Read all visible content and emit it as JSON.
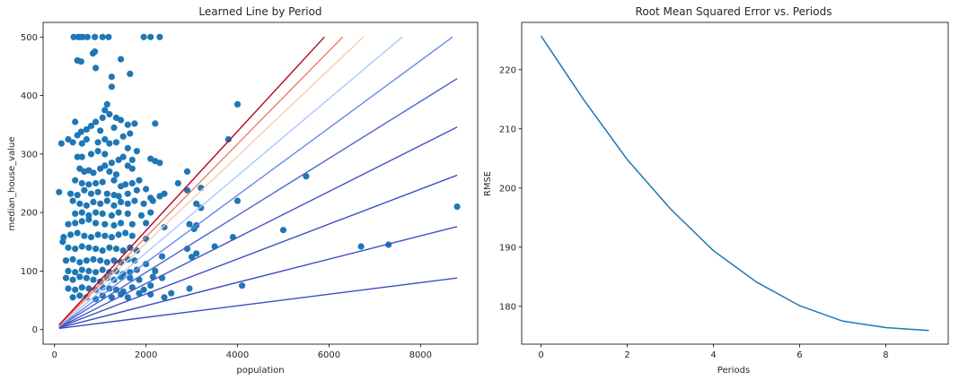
{
  "chart_data": [
    {
      "type": "scatter",
      "title": "Learned Line by Period",
      "xlabel": "population",
      "ylabel": "median_house_value",
      "xlim": [
        -250,
        9250
      ],
      "ylim": [
        -25,
        525
      ],
      "xticks": [
        0,
        2000,
        4000,
        6000,
        8000
      ],
      "yticks": [
        0,
        100,
        200,
        300,
        400,
        500
      ],
      "grid": false,
      "scatter_color": "#1f77b4",
      "points": [
        [
          420,
          500
        ],
        [
          520,
          500
        ],
        [
          560,
          500
        ],
        [
          620,
          500
        ],
        [
          720,
          500
        ],
        [
          880,
          500
        ],
        [
          1050,
          500
        ],
        [
          1180,
          500
        ],
        [
          1950,
          500
        ],
        [
          2100,
          500
        ],
        [
          2300,
          500
        ],
        [
          500,
          460
        ],
        [
          580,
          458
        ],
        [
          840,
          472
        ],
        [
          880,
          475
        ],
        [
          1450,
          462
        ],
        [
          1650,
          437
        ],
        [
          1250,
          432
        ],
        [
          1250,
          415
        ],
        [
          900,
          447
        ],
        [
          1150,
          385
        ],
        [
          1100,
          375
        ],
        [
          1200,
          368
        ],
        [
          1050,
          362
        ],
        [
          1350,
          362
        ],
        [
          1450,
          358
        ],
        [
          1600,
          350
        ],
        [
          1750,
          352
        ],
        [
          2200,
          352
        ],
        [
          4000,
          385
        ],
        [
          450,
          355
        ],
        [
          500,
          332
        ],
        [
          580,
          338
        ],
        [
          700,
          342
        ],
        [
          800,
          348
        ],
        [
          900,
          355
        ],
        [
          1000,
          340
        ],
        [
          1300,
          345
        ],
        [
          1500,
          330
        ],
        [
          1650,
          335
        ],
        [
          3800,
          325
        ],
        [
          300,
          325
        ],
        [
          400,
          320
        ],
        [
          600,
          318
        ],
        [
          700,
          325
        ],
        [
          950,
          320
        ],
        [
          1100,
          325
        ],
        [
          1200,
          318
        ],
        [
          1350,
          320
        ],
        [
          1600,
          310
        ],
        [
          1800,
          305
        ],
        [
          150,
          318
        ],
        [
          500,
          295
        ],
        [
          600,
          295
        ],
        [
          800,
          300
        ],
        [
          950,
          305
        ],
        [
          1100,
          300
        ],
        [
          1250,
          285
        ],
        [
          1400,
          290
        ],
        [
          1500,
          295
        ],
        [
          1700,
          290
        ],
        [
          2100,
          292
        ],
        [
          2200,
          288
        ],
        [
          2300,
          285
        ],
        [
          550,
          275
        ],
        [
          650,
          270
        ],
        [
          750,
          272
        ],
        [
          850,
          268
        ],
        [
          1000,
          275
        ],
        [
          1100,
          280
        ],
        [
          1200,
          270
        ],
        [
          1350,
          265
        ],
        [
          1600,
          280
        ],
        [
          1700,
          275
        ],
        [
          2900,
          270
        ],
        [
          450,
          255
        ],
        [
          600,
          250
        ],
        [
          750,
          248
        ],
        [
          900,
          250
        ],
        [
          1050,
          252
        ],
        [
          1300,
          255
        ],
        [
          1450,
          245
        ],
        [
          1550,
          248
        ],
        [
          1700,
          250
        ],
        [
          1850,
          255
        ],
        [
          2000,
          240
        ],
        [
          2700,
          250
        ],
        [
          350,
          232
        ],
        [
          500,
          230
        ],
        [
          650,
          238
        ],
        [
          800,
          232
        ],
        [
          950,
          235
        ],
        [
          1150,
          232
        ],
        [
          1300,
          230
        ],
        [
          1400,
          228
        ],
        [
          1600,
          232
        ],
        [
          1800,
          238
        ],
        [
          2100,
          225
        ],
        [
          2300,
          228
        ],
        [
          2400,
          232
        ],
        [
          2900,
          238
        ],
        [
          3200,
          242
        ],
        [
          100,
          235
        ],
        [
          400,
          220
        ],
        [
          550,
          215
        ],
        [
          700,
          212
        ],
        [
          850,
          218
        ],
        [
          1000,
          215
        ],
        [
          1150,
          220
        ],
        [
          1300,
          212
        ],
        [
          1450,
          218
        ],
        [
          1600,
          215
        ],
        [
          1750,
          220
        ],
        [
          1950,
          215
        ],
        [
          2150,
          220
        ],
        [
          3100,
          215
        ],
        [
          3200,
          208
        ],
        [
          4000,
          220
        ],
        [
          5500,
          262
        ],
        [
          8800,
          210
        ],
        [
          450,
          198
        ],
        [
          600,
          200
        ],
        [
          750,
          195
        ],
        [
          900,
          200
        ],
        [
          1050,
          198
        ],
        [
          1250,
          195
        ],
        [
          1400,
          200
        ],
        [
          1600,
          198
        ],
        [
          1900,
          195
        ],
        [
          2100,
          200
        ],
        [
          300,
          180
        ],
        [
          450,
          182
        ],
        [
          600,
          185
        ],
        [
          750,
          188
        ],
        [
          900,
          182
        ],
        [
          1100,
          180
        ],
        [
          1300,
          178
        ],
        [
          1450,
          182
        ],
        [
          1700,
          180
        ],
        [
          2000,
          182
        ],
        [
          2400,
          175
        ],
        [
          2950,
          180
        ],
        [
          3100,
          178
        ],
        [
          200,
          158
        ],
        [
          350,
          162
        ],
        [
          500,
          165
        ],
        [
          650,
          160
        ],
        [
          800,
          158
        ],
        [
          950,
          162
        ],
        [
          1100,
          160
        ],
        [
          1250,
          158
        ],
        [
          1400,
          162
        ],
        [
          1550,
          165
        ],
        [
          1700,
          160
        ],
        [
          2000,
          155
        ],
        [
          3050,
          172
        ],
        [
          3500,
          142
        ],
        [
          3900,
          158
        ],
        [
          5000,
          170
        ],
        [
          6700,
          142
        ],
        [
          7300,
          145
        ],
        [
          180,
          150
        ],
        [
          300,
          140
        ],
        [
          450,
          138
        ],
        [
          600,
          142
        ],
        [
          750,
          140
        ],
        [
          900,
          138
        ],
        [
          1050,
          135
        ],
        [
          1200,
          140
        ],
        [
          1350,
          138
        ],
        [
          1500,
          135
        ],
        [
          1650,
          140
        ],
        [
          1800,
          135
        ],
        [
          2350,
          125
        ],
        [
          2900,
          138
        ],
        [
          3100,
          130
        ],
        [
          3000,
          124
        ],
        [
          250,
          118
        ],
        [
          400,
          120
        ],
        [
          550,
          115
        ],
        [
          700,
          118
        ],
        [
          850,
          120
        ],
        [
          1000,
          118
        ],
        [
          1150,
          115
        ],
        [
          1300,
          118
        ],
        [
          1450,
          115
        ],
        [
          1600,
          120
        ],
        [
          1750,
          118
        ],
        [
          2000,
          112
        ],
        [
          300,
          100
        ],
        [
          450,
          98
        ],
        [
          600,
          102
        ],
        [
          750,
          100
        ],
        [
          900,
          98
        ],
        [
          1050,
          102
        ],
        [
          1200,
          98
        ],
        [
          1350,
          100
        ],
        [
          1500,
          95
        ],
        [
          1650,
          98
        ],
        [
          1800,
          102
        ],
        [
          2200,
          100
        ],
        [
          250,
          88
        ],
        [
          400,
          85
        ],
        [
          550,
          90
        ],
        [
          700,
          88
        ],
        [
          850,
          85
        ],
        [
          1000,
          82
        ],
        [
          1150,
          88
        ],
        [
          1300,
          85
        ],
        [
          1450,
          90
        ],
        [
          1650,
          88
        ],
        [
          1850,
          85
        ],
        [
          2150,
          90
        ],
        [
          2350,
          88
        ],
        [
          300,
          70
        ],
        [
          450,
          68
        ],
        [
          600,
          72
        ],
        [
          750,
          70
        ],
        [
          900,
          68
        ],
        [
          1050,
          72
        ],
        [
          1200,
          70
        ],
        [
          1350,
          68
        ],
        [
          1500,
          65
        ],
        [
          1700,
          72
        ],
        [
          1950,
          68
        ],
        [
          2100,
          75
        ],
        [
          2950,
          70
        ],
        [
          4100,
          75
        ],
        [
          400,
          55
        ],
        [
          550,
          58
        ],
        [
          700,
          55
        ],
        [
          900,
          52
        ],
        [
          1050,
          58
        ],
        [
          1250,
          55
        ],
        [
          1450,
          60
        ],
        [
          1600,
          55
        ],
        [
          1850,
          62
        ],
        [
          2100,
          60
        ],
        [
          2400,
          55
        ],
        [
          2550,
          62
        ]
      ],
      "lines": [
        {
          "color": "#3b4cc0",
          "x": [
            100,
            8800
          ],
          "y": [
            2,
            88
          ]
        },
        {
          "color": "#3b4cc0",
          "x": [
            100,
            8800
          ],
          "y": [
            3,
            176
          ]
        },
        {
          "color": "#3d50c3",
          "x": [
            100,
            8800
          ],
          "y": [
            4,
            264
          ]
        },
        {
          "color": "#4257c9",
          "x": [
            100,
            8800
          ],
          "y": [
            4,
            346
          ]
        },
        {
          "color": "#4a63d3",
          "x": [
            100,
            8800
          ],
          "y": [
            5,
            429
          ]
        },
        {
          "color": "#6687ed",
          "x": [
            100,
            8700
          ],
          "y": [
            5,
            500
          ]
        },
        {
          "color": "#aac7fd",
          "x": [
            100,
            7600
          ],
          "y": [
            6,
            500
          ]
        },
        {
          "color": "#f6cbb7",
          "x": [
            100,
            6750
          ],
          "y": [
            7,
            500
          ]
        },
        {
          "color": "#ec8165",
          "x": [
            100,
            6300
          ],
          "y": [
            7,
            500
          ]
        },
        {
          "color": "#b40426",
          "x": [
            100,
            5900
          ],
          "y": [
            8,
            500
          ]
        }
      ]
    },
    {
      "type": "line",
      "title": "Root Mean Squared Error vs. Periods",
      "xlabel": "Periods",
      "ylabel": "RMSE",
      "xlim": [
        -0.45,
        9.45
      ],
      "ylim": [
        173.6,
        228.0
      ],
      "xticks": [
        0,
        2,
        4,
        6,
        8
      ],
      "yticks": [
        180,
        190,
        200,
        210,
        220
      ],
      "grid": false,
      "line_color": "#1f77b4",
      "x": [
        0,
        1,
        2,
        3,
        4,
        5,
        6,
        7,
        8,
        9
      ],
      "y": [
        225.7,
        214.8,
        204.8,
        196.5,
        189.4,
        184.1,
        180.1,
        177.5,
        176.4,
        175.9
      ]
    }
  ]
}
